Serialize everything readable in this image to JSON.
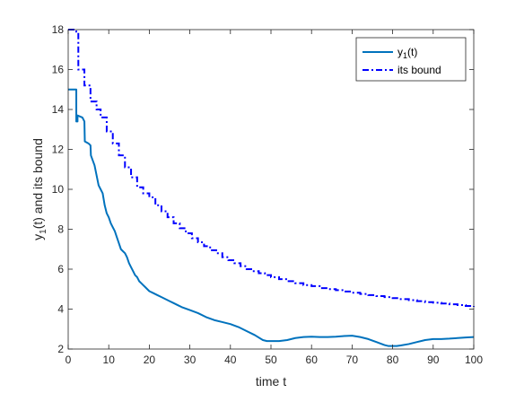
{
  "chart_data": {
    "type": "line",
    "xlabel": "time t",
    "ylabel_main": "y",
    "ylabel_sub": "1",
    "ylabel_rest": "(t) and its bound",
    "xlim": [
      0,
      100
    ],
    "ylim": [
      2,
      18
    ],
    "xticks": [
      0,
      10,
      20,
      30,
      40,
      50,
      60,
      70,
      80,
      90,
      100
    ],
    "yticks": [
      2,
      4,
      6,
      8,
      10,
      12,
      14,
      16,
      18
    ],
    "grid": false,
    "legend_position": "top-right",
    "series": [
      {
        "name_main": "y",
        "name_sub": "1",
        "name_rest": "(t)",
        "color": "#0072BD",
        "style": "solid",
        "x": [
          0,
          2,
          2,
          2.3,
          2.3,
          3.5,
          4,
          4.1,
          5,
          5.5,
          5.6,
          6.5,
          7,
          7.5,
          8,
          8.5,
          9,
          9.5,
          10,
          10.5,
          11,
          11.5,
          12,
          12.5,
          13,
          13.5,
          14,
          14.5,
          15,
          15.5,
          16,
          16.5,
          17,
          17.5,
          18,
          18.5,
          19,
          19.5,
          20,
          21,
          22,
          23,
          24,
          25,
          26,
          27,
          28,
          30,
          32,
          34,
          36,
          38,
          40,
          42,
          44,
          46,
          48,
          49,
          50,
          51,
          52,
          54,
          56,
          58,
          60,
          62,
          64,
          66,
          68,
          70,
          72,
          74,
          76,
          78,
          79,
          80,
          81,
          82,
          84,
          86,
          88,
          90,
          92,
          94,
          96,
          98,
          100
        ],
        "y": [
          15.0,
          15.0,
          13.4,
          13.4,
          13.7,
          13.6,
          13.4,
          12.4,
          12.3,
          12.2,
          11.7,
          11.2,
          10.7,
          10.2,
          10.0,
          9.8,
          9.2,
          8.8,
          8.6,
          8.3,
          8.1,
          7.9,
          7.6,
          7.3,
          7.0,
          6.9,
          6.8,
          6.6,
          6.3,
          6.1,
          5.9,
          5.7,
          5.6,
          5.4,
          5.3,
          5.2,
          5.1,
          5.0,
          4.9,
          4.8,
          4.7,
          4.6,
          4.5,
          4.4,
          4.3,
          4.2,
          4.1,
          3.95,
          3.8,
          3.6,
          3.45,
          3.35,
          3.25,
          3.1,
          2.9,
          2.7,
          2.45,
          2.4,
          2.4,
          2.4,
          2.4,
          2.45,
          2.55,
          2.6,
          2.62,
          2.6,
          2.6,
          2.62,
          2.65,
          2.67,
          2.6,
          2.5,
          2.35,
          2.2,
          2.15,
          2.15,
          2.15,
          2.18,
          2.25,
          2.35,
          2.45,
          2.5,
          2.5,
          2.52,
          2.55,
          2.58,
          2.6
        ]
      },
      {
        "name": "its bound",
        "color": "#0000FF",
        "style": "dashdot",
        "steps": [
          [
            0,
            18.0
          ],
          [
            2,
            17.9
          ],
          [
            2.5,
            16.0
          ],
          [
            4,
            15.2
          ],
          [
            5.5,
            14.4
          ],
          [
            7,
            14.0
          ],
          [
            8,
            13.6
          ],
          [
            9.5,
            12.9
          ],
          [
            11,
            12.3
          ],
          [
            12.5,
            11.7
          ],
          [
            14,
            11.1
          ],
          [
            15.5,
            10.6
          ],
          [
            17,
            10.1
          ],
          [
            18.5,
            9.8
          ],
          [
            20,
            9.6
          ],
          [
            21.5,
            9.2
          ],
          [
            23,
            8.9
          ],
          [
            24.5,
            8.6
          ],
          [
            26,
            8.3
          ],
          [
            27.5,
            8.05
          ],
          [
            29,
            7.8
          ],
          [
            30.5,
            7.55
          ],
          [
            32,
            7.35
          ],
          [
            33.5,
            7.15
          ],
          [
            35,
            6.95
          ],
          [
            36.5,
            6.8
          ],
          [
            38,
            6.6
          ],
          [
            39.5,
            6.45
          ],
          [
            41,
            6.3
          ],
          [
            42.5,
            6.15
          ],
          [
            44,
            6.0
          ],
          [
            45.5,
            5.9
          ],
          [
            47,
            5.8
          ],
          [
            48.5,
            5.7
          ],
          [
            50,
            5.6
          ],
          [
            52,
            5.5
          ],
          [
            54,
            5.4
          ],
          [
            56,
            5.3
          ],
          [
            58,
            5.2
          ],
          [
            60,
            5.15
          ],
          [
            62,
            5.05
          ],
          [
            64,
            5.0
          ],
          [
            66,
            4.95
          ],
          [
            68,
            4.88
          ],
          [
            70,
            4.82
          ],
          [
            72,
            4.76
          ],
          [
            74,
            4.7
          ],
          [
            76,
            4.65
          ],
          [
            78,
            4.6
          ],
          [
            80,
            4.55
          ],
          [
            82,
            4.5
          ],
          [
            84,
            4.45
          ],
          [
            86,
            4.4
          ],
          [
            88,
            4.35
          ],
          [
            90,
            4.32
          ],
          [
            92,
            4.28
          ],
          [
            94,
            4.24
          ],
          [
            96,
            4.2
          ],
          [
            98,
            4.16
          ],
          [
            100,
            4.12
          ]
        ]
      }
    ]
  }
}
